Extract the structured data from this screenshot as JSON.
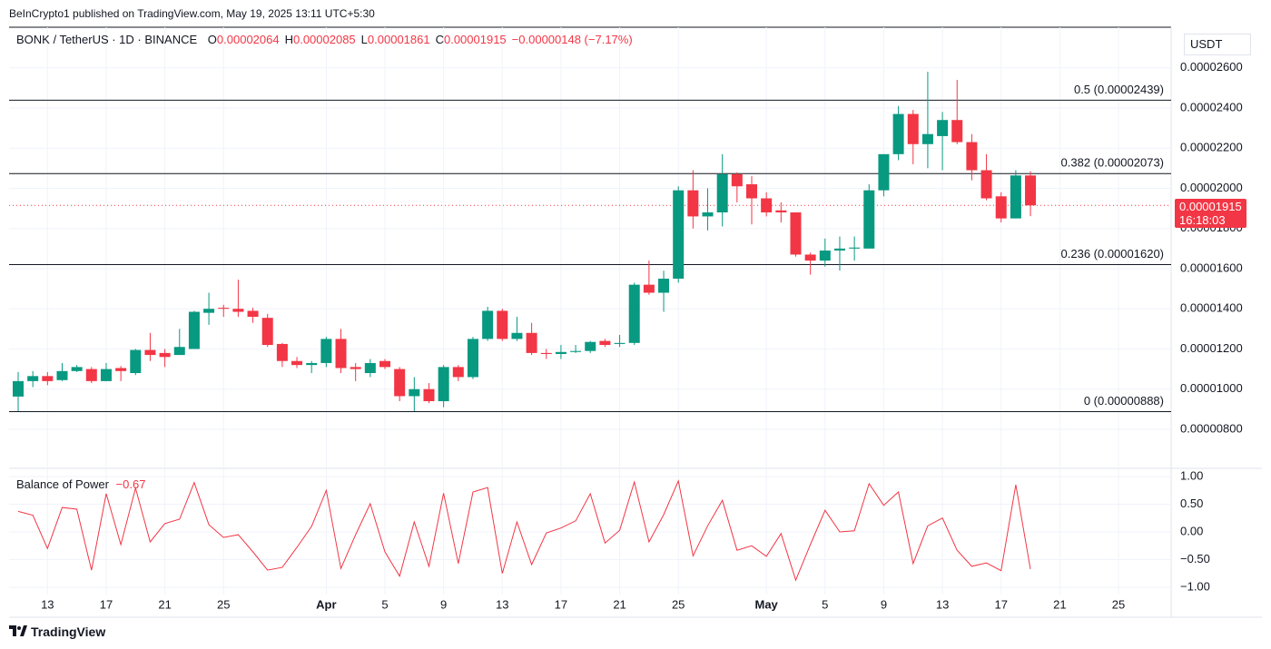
{
  "header": {
    "attribution": "BeInCrypto1 published on TradingView.com, May 19, 2025 13:11 UTC+5:30",
    "footer": "TradingView"
  },
  "chart_data": [
    {
      "type": "candlestick",
      "symbol": "BONK / TetherUS · 1D · BINANCE",
      "ohlc_legend": [
        {
          "key": "O",
          "value": "0.00002064"
        },
        {
          "key": "H",
          "value": "0.00002085"
        },
        {
          "key": "L",
          "value": "0.00001861"
        },
        {
          "key": "C",
          "value": "0.00001915"
        }
      ],
      "change": "−0.00000148 (−7.17%)",
      "currency": "USDT",
      "last_price_label": "0.00001915",
      "countdown": "16:18:03",
      "up_color": "#089981",
      "down_color": "#f23645",
      "categories": [
        null,
        null,
        "13",
        null,
        null,
        null,
        "17",
        null,
        null,
        null,
        "21",
        null,
        null,
        null,
        "25",
        null,
        null,
        null,
        null,
        null,
        null,
        "Apr",
        null,
        null,
        null,
        "5",
        null,
        null,
        null,
        "9",
        null,
        null,
        null,
        "13",
        null,
        null,
        null,
        "17",
        null,
        null,
        null,
        "21",
        null,
        null,
        null,
        "25",
        null,
        null,
        null,
        null,
        null,
        "May",
        null,
        null,
        null,
        "5",
        null,
        null,
        null,
        "9",
        null,
        null,
        null,
        "13",
        null,
        null,
        null,
        "17",
        null,
        null,
        null,
        "21",
        null,
        null,
        null,
        "25",
        null,
        null,
        null
      ],
      "open": [
        9.63e-06,
        1.04e-05,
        1.065e-05,
        1.045e-05,
        1.09e-05,
        1.1e-05,
        1.04e-05,
        1.105e-05,
        1.08e-05,
        1.195e-05,
        1.18e-05,
        1.17e-05,
        1.2e-05,
        1.38e-05,
        1.405e-05,
        1.4e-05,
        1.39e-05,
        1.355e-05,
        1.225e-05,
        1.14e-05,
        1.12e-05,
        1.13e-05,
        1.25e-05,
        1.11e-05,
        1.08e-05,
        1.14e-05,
        1.1e-05,
        9.65e-06,
        1e-05,
        9.4e-06,
        1.11e-05,
        1.06e-05,
        1.25e-05,
        1.39e-05,
        1.25e-05,
        1.28e-05,
        1.18e-05,
        1.175e-05,
        1.185e-05,
        1.19e-05,
        1.24e-05,
        1.225e-05,
        1.23e-05,
        1.52e-05,
        1.48e-05,
        1.55e-05,
        1.99e-05,
        1.86e-05,
        1.88e-05,
        2.07e-05,
        2.02e-05,
        1.95e-05,
        1.89e-05,
        1.88e-05,
        1.67e-05,
        1.64e-05,
        1.69e-05,
        1.7e-05,
        1.7e-05,
        1.99e-05,
        2.17e-05,
        2.37e-05,
        2.22e-05,
        2.26e-05,
        2.34e-05,
        2.23e-05,
        2.09e-05,
        1.96e-05,
        1.85e-05,
        2.064e-05,
        null,
        null,
        null,
        null,
        null,
        null,
        null,
        null,
        null
      ],
      "high": [
        1.085e-05,
        1.09e-05,
        1.085e-05,
        1.13e-05,
        1.12e-05,
        1.11e-05,
        1.13e-05,
        1.115e-05,
        1.2e-05,
        1.28e-05,
        1.2e-05,
        1.3e-05,
        1.39e-05,
        1.48e-05,
        1.42e-05,
        1.545e-05,
        1.405e-05,
        1.375e-05,
        1.23e-05,
        1.16e-05,
        1.14e-05,
        1.26e-05,
        1.3e-05,
        1.13e-05,
        1.15e-05,
        1.15e-05,
        1.11e-05,
        1.06e-05,
        1.03e-05,
        1.12e-05,
        1.12e-05,
        1.26e-05,
        1.41e-05,
        1.4e-05,
        1.36e-05,
        1.33e-05,
        1.2e-05,
        1.22e-05,
        1.22e-05,
        1.24e-05,
        1.25e-05,
        1.27e-05,
        1.53e-05,
        1.64e-05,
        1.59e-05,
        2.01e-05,
        2.09e-05,
        2e-05,
        2.17e-05,
        2.08e-05,
        2.06e-05,
        1.98e-05,
        1.93e-05,
        1.88e-05,
        1.68e-05,
        1.75e-05,
        1.76e-05,
        1.76e-05,
        2.02e-05,
        2.17e-05,
        2.41e-05,
        2.39e-05,
        2.58e-05,
        2.38e-05,
        2.54e-05,
        2.27e-05,
        2.17e-05,
        1.98e-05,
        2.09e-05,
        2.085e-05,
        null,
        null,
        null,
        null,
        null,
        null,
        null,
        null,
        null
      ],
      "low": [
        8.9e-06,
        1.01e-05,
        1.02e-05,
        1.04e-05,
        1.085e-05,
        1.03e-05,
        1.04e-05,
        1.04e-05,
        1.07e-05,
        1.14e-05,
        1.11e-05,
        1.17e-05,
        1.2e-05,
        1.32e-05,
        1.36e-05,
        1.36e-05,
        1.33e-05,
        1.21e-05,
        1.11e-05,
        1.105e-05,
        1.08e-05,
        1.11e-05,
        1.08e-05,
        1.04e-05,
        1.06e-05,
        1.1e-05,
        9.4e-06,
        8.9e-06,
        9.3e-06,
        9.1e-06,
        1.04e-05,
        1.05e-05,
        1.24e-05,
        1.24e-05,
        1.24e-05,
        1.17e-05,
        1.15e-05,
        1.15e-05,
        1.18e-05,
        1.18e-05,
        1.21e-05,
        1.21e-05,
        1.22e-05,
        1.47e-05,
        1.385e-05,
        1.53e-05,
        1.8e-05,
        1.79e-05,
        1.81e-05,
        1.93e-05,
        1.82e-05,
        1.86e-05,
        1.83e-05,
        1.66e-05,
        1.57e-05,
        1.61e-05,
        1.59e-05,
        1.64e-05,
        1.7e-05,
        1.96e-05,
        2.14e-05,
        2.12e-05,
        2.1e-05,
        2.09e-05,
        2.22e-05,
        2.04e-05,
        1.94e-05,
        1.83e-05,
        1.85e-05,
        1.861e-05,
        null,
        null,
        null,
        null,
        null,
        null,
        null,
        null,
        null
      ],
      "close": [
        1.04e-05,
        1.065e-05,
        1.04e-05,
        1.09e-05,
        1.11e-05,
        1.04e-05,
        1.1e-05,
        1.09e-05,
        1.195e-05,
        1.17e-05,
        1.16e-05,
        1.21e-05,
        1.385e-05,
        1.4e-05,
        1.4e-05,
        1.385e-05,
        1.36e-05,
        1.22e-05,
        1.14e-05,
        1.12e-05,
        1.13e-05,
        1.25e-05,
        1.105e-05,
        1.1e-05,
        1.13e-05,
        1.11e-05,
        9.65e-06,
        1e-05,
        9.4e-06,
        1.11e-05,
        1.06e-05,
        1.25e-05,
        1.39e-05,
        1.25e-05,
        1.28e-05,
        1.18e-05,
        1.175e-05,
        1.185e-05,
        1.19e-05,
        1.235e-05,
        1.22e-05,
        1.23e-05,
        1.52e-05,
        1.48e-05,
        1.55e-05,
        1.99e-05,
        1.86e-05,
        1.88e-05,
        2.07e-05,
        2.01e-05,
        1.95e-05,
        1.88e-05,
        1.88e-05,
        1.67e-05,
        1.64e-05,
        1.69e-05,
        1.7e-05,
        1.705e-05,
        1.99e-05,
        2.17e-05,
        2.37e-05,
        2.22e-05,
        2.27e-05,
        2.34e-05,
        2.23e-05,
        2.09e-05,
        1.95e-05,
        1.85e-05,
        2.064e-05,
        1.915e-05,
        null,
        null,
        null,
        null,
        null,
        null,
        null,
        null,
        null
      ],
      "ylim": [
        6.1e-06,
        2.802e-05
      ],
      "yticks": [
        {
          "value": 8e-06,
          "label": "0.00000800"
        },
        {
          "value": 1e-05,
          "label": "0.00001000"
        },
        {
          "value": 1.2e-05,
          "label": "0.00001200"
        },
        {
          "value": 1.4e-05,
          "label": "0.00001400"
        },
        {
          "value": 1.6e-05,
          "label": "0.00001600"
        },
        {
          "value": 1.8e-05,
          "label": "0.00001800"
        },
        {
          "value": 2e-05,
          "label": "0.00002000"
        },
        {
          "value": 2.2e-05,
          "label": "0.00002200"
        },
        {
          "value": 2.4e-05,
          "label": "0.00002400"
        },
        {
          "value": 2.6e-05,
          "label": "0.00002600"
        }
      ],
      "fib_levels": [
        {
          "label": "0.5 (0.00002439)",
          "value": 2.439e-05
        },
        {
          "label": "0.382 (0.00002073)",
          "value": 2.073e-05
        },
        {
          "label": "0.236 (0.00001620)",
          "value": 1.62e-05
        },
        {
          "label": "0 (0.00000888)",
          "value": 8.88e-06
        }
      ],
      "grid": true
    },
    {
      "type": "line",
      "title": "Balance of Power",
      "current_value_label": "−0.67",
      "color": "#f23645",
      "values": [
        0.37,
        0.3,
        -0.3,
        0.44,
        0.41,
        -0.69,
        0.69,
        -0.23,
        0.79,
        -0.18,
        0.15,
        0.23,
        0.89,
        0.13,
        -0.1,
        -0.05,
        -0.36,
        -0.69,
        -0.64,
        -0.28,
        0.1,
        0.75,
        -0.66,
        -0.05,
        0.51,
        -0.36,
        -0.8,
        0.18,
        -0.62,
        0.7,
        -0.57,
        0.72,
        0.8,
        -0.75,
        0.18,
        -0.59,
        -0.02,
        0.07,
        0.2,
        0.69,
        -0.2,
        0.03,
        0.9,
        -0.18,
        0.31,
        0.92,
        -0.43,
        0.11,
        0.57,
        -0.33,
        -0.25,
        -0.44,
        -0.03,
        -0.87,
        -0.23,
        0.39,
        0.0,
        0.02,
        0.87,
        0.48,
        0.72,
        -0.57,
        0.11,
        0.25,
        -0.33,
        -0.62,
        -0.56,
        -0.7,
        0.85,
        -0.67,
        null,
        null,
        null,
        null,
        null,
        null,
        null,
        null,
        null
      ],
      "ylim": [
        -1.13,
        1.13
      ],
      "yticks": [
        {
          "value": 1,
          "label": "1.00"
        },
        {
          "value": 0.5,
          "label": "0.50"
        },
        {
          "value": 0,
          "label": "0.00"
        },
        {
          "value": -0.5,
          "label": "−0.50"
        },
        {
          "value": -1,
          "label": "−1.00"
        }
      ]
    }
  ]
}
